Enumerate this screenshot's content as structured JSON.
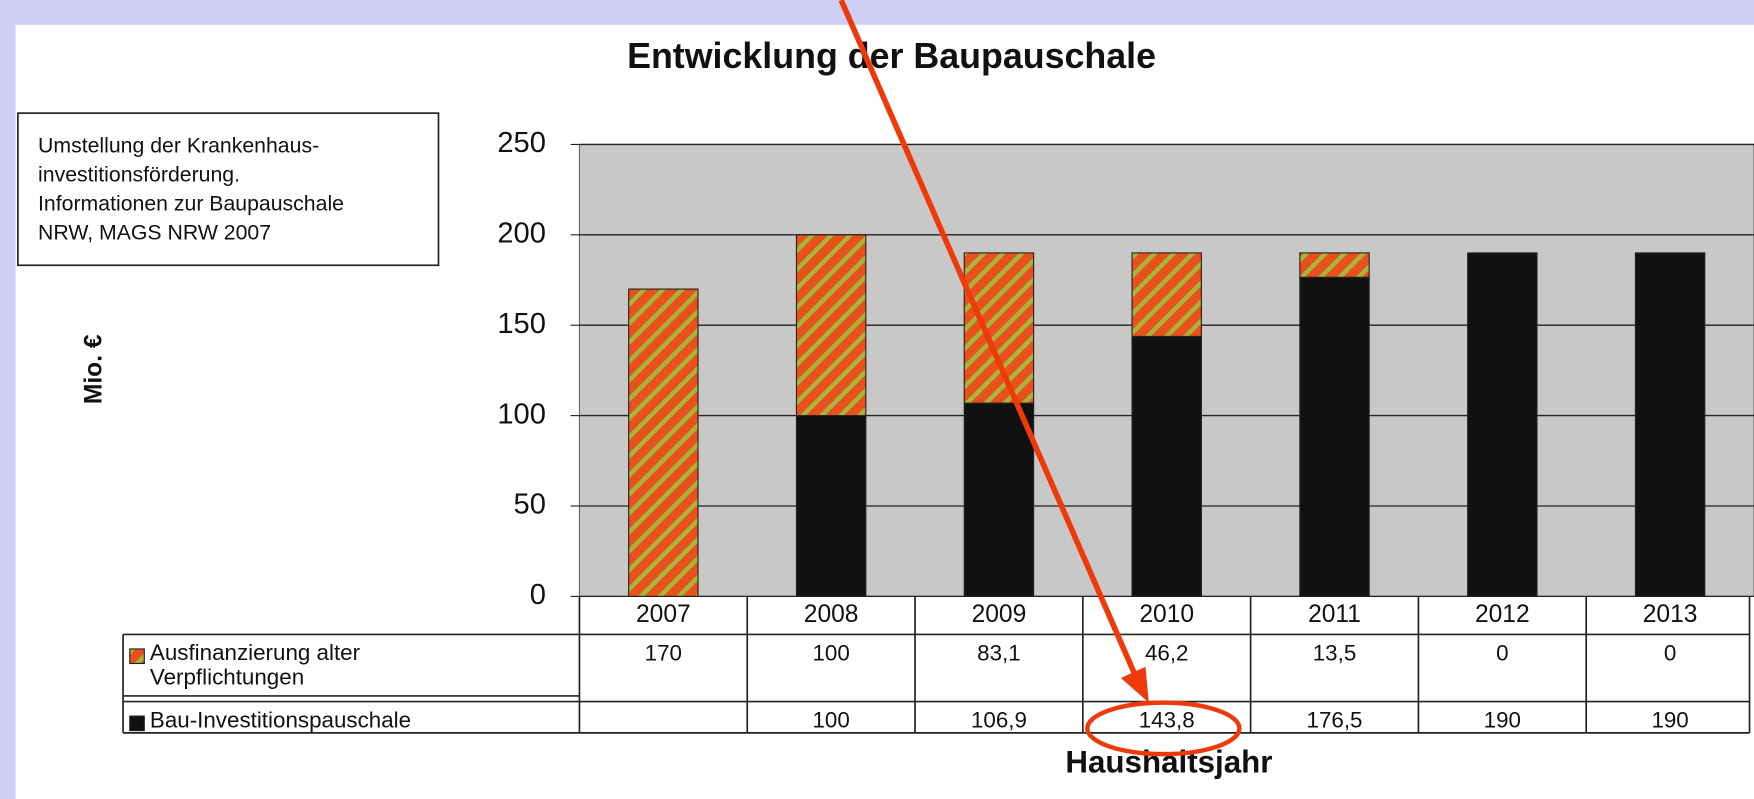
{
  "chart_data": {
    "type": "bar",
    "stacked": true,
    "title": "Entwicklung der Baupauschale",
    "xlabel": "Haushaltsjahr",
    "ylabel": "Mio. €",
    "note": [
      "Umstellung der Krankenhaus-",
      "investitionsförderung.",
      "Informationen zur Baupauschale",
      "NRW, MAGS NRW 2007"
    ],
    "categories": [
      "2007",
      "2008",
      "2009",
      "2010",
      "2011",
      "2012",
      "2013"
    ],
    "series": [
      {
        "name": "Ausfinanzierung alter Verpflichtungen",
        "color": "#e8501c",
        "hatch_color": "#a8b43a",
        "values": [
          170,
          100,
          83.1,
          46.2,
          13.5,
          0,
          0
        ],
        "value_labels": [
          "170",
          "100",
          "83,1",
          "46,2",
          "13,5",
          "0",
          "0"
        ]
      },
      {
        "name": "Bau-Investitionspauschale",
        "color": "#111111",
        "values": [
          null,
          100,
          106.9,
          143.8,
          176.5,
          190,
          190
        ],
        "value_labels": [
          null,
          "100",
          "106,9",
          "143,8",
          "176,5",
          "190",
          "190"
        ]
      }
    ],
    "ylim": [
      0,
      250
    ],
    "yticks": [
      0,
      50,
      100,
      150,
      200,
      250
    ],
    "grid": true
  }
}
